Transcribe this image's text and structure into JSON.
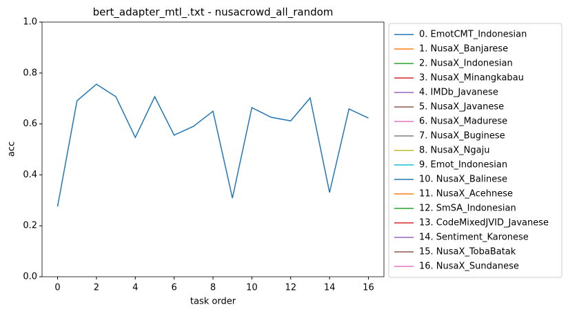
{
  "chart_data": {
    "type": "line",
    "title": "bert_adapter_mtl_.txt - nusacrowd_all_random",
    "xlabel": "task order",
    "ylabel": "acc",
    "x": [
      0,
      1,
      2,
      3,
      4,
      5,
      6,
      7,
      8,
      9,
      10,
      11,
      12,
      13,
      14,
      15,
      16
    ],
    "xlim": [
      -0.8,
      16.8
    ],
    "xticks": [
      0,
      2,
      4,
      6,
      8,
      10,
      12,
      14,
      16
    ],
    "ylim": [
      0,
      1
    ],
    "yticks": [
      {
        "value": 0,
        "label": "0.0"
      },
      0.2,
      0.4,
      0.6,
      0.8,
      {
        "value": 1,
        "label": "1.0"
      }
    ],
    "legend": "outside right",
    "series": [
      {
        "name": "0. EmotCMT_Indonesian",
        "color": "#1f77b4",
        "values": [
          0.276,
          0.691,
          0.756,
          0.707,
          0.547,
          0.707,
          0.556,
          0.591,
          0.65,
          0.309,
          0.664,
          0.626,
          0.612,
          0.702,
          0.331,
          0.659,
          0.623
        ]
      },
      {
        "name": "1. NusaX_Banjarese",
        "color": "#ff7f0e",
        "values": [
          null,
          null,
          null,
          null,
          null,
          null,
          null,
          null,
          null,
          null,
          null,
          null,
          null,
          null,
          null,
          null,
          null
        ]
      },
      {
        "name": "2. NusaX_Indonesian",
        "color": "#2ca02c",
        "values": [
          null,
          null,
          null,
          null,
          null,
          null,
          null,
          null,
          null,
          null,
          null,
          null,
          null,
          null,
          null,
          null,
          null
        ]
      },
      {
        "name": "3. NusaX_Minangkabau",
        "color": "#d62728",
        "values": [
          null,
          null,
          null,
          null,
          null,
          null,
          null,
          null,
          null,
          null,
          null,
          null,
          null,
          null,
          null,
          null,
          null
        ]
      },
      {
        "name": "4. IMDb_Javanese",
        "color": "#9467bd",
        "values": [
          null,
          null,
          null,
          null,
          null,
          null,
          null,
          null,
          null,
          null,
          null,
          null,
          null,
          null,
          null,
          null,
          null
        ]
      },
      {
        "name": "5. NusaX_Javanese",
        "color": "#8c564b",
        "values": [
          null,
          null,
          null,
          null,
          null,
          null,
          null,
          null,
          null,
          null,
          null,
          null,
          null,
          null,
          null,
          null,
          null
        ]
      },
      {
        "name": "6. NusaX_Madurese",
        "color": "#e377c2",
        "values": [
          null,
          null,
          null,
          null,
          null,
          null,
          null,
          null,
          null,
          null,
          null,
          null,
          null,
          null,
          null,
          null,
          null
        ]
      },
      {
        "name": "7. NusaX_Buginese",
        "color": "#7f7f7f",
        "values": [
          null,
          null,
          null,
          null,
          null,
          null,
          null,
          null,
          null,
          null,
          null,
          null,
          null,
          null,
          null,
          null,
          null
        ]
      },
      {
        "name": "8. NusaX_Ngaju",
        "color": "#bcbd22",
        "values": [
          null,
          null,
          null,
          null,
          null,
          null,
          null,
          null,
          null,
          null,
          null,
          null,
          null,
          null,
          null,
          null,
          null
        ]
      },
      {
        "name": "9. Emot_Indonesian",
        "color": "#17becf",
        "values": [
          null,
          null,
          null,
          null,
          null,
          null,
          null,
          null,
          null,
          null,
          null,
          null,
          null,
          null,
          null,
          null,
          null
        ]
      },
      {
        "name": "10. NusaX_Balinese",
        "color": "#1f77b4",
        "values": [
          null,
          null,
          null,
          null,
          null,
          null,
          null,
          null,
          null,
          null,
          null,
          null,
          null,
          null,
          null,
          null,
          null
        ]
      },
      {
        "name": "11. NusaX_Acehnese",
        "color": "#ff7f0e",
        "values": [
          null,
          null,
          null,
          null,
          null,
          null,
          null,
          null,
          null,
          null,
          null,
          null,
          null,
          null,
          null,
          null,
          null
        ]
      },
      {
        "name": "12. SmSA_Indonesian",
        "color": "#2ca02c",
        "values": [
          null,
          null,
          null,
          null,
          null,
          null,
          null,
          null,
          null,
          null,
          null,
          null,
          null,
          null,
          null,
          null,
          null
        ]
      },
      {
        "name": "13. CodeMixedJVID_Javanese",
        "color": "#d62728",
        "values": [
          null,
          null,
          null,
          null,
          null,
          null,
          null,
          null,
          null,
          null,
          null,
          null,
          null,
          null,
          null,
          null,
          null
        ]
      },
      {
        "name": "14. Sentiment_Karonese",
        "color": "#9467bd",
        "values": [
          null,
          null,
          null,
          null,
          null,
          null,
          null,
          null,
          null,
          null,
          null,
          null,
          null,
          null,
          null,
          null,
          null
        ]
      },
      {
        "name": "15. NusaX_TobaBatak",
        "color": "#8c564b",
        "values": [
          null,
          null,
          null,
          null,
          null,
          null,
          null,
          null,
          null,
          null,
          null,
          null,
          null,
          null,
          null,
          null,
          null
        ]
      },
      {
        "name": "16. NusaX_Sundanese",
        "color": "#e377c2",
        "values": [
          null,
          null,
          null,
          null,
          null,
          null,
          null,
          null,
          null,
          null,
          null,
          null,
          null,
          null,
          null,
          null,
          null
        ]
      }
    ]
  }
}
